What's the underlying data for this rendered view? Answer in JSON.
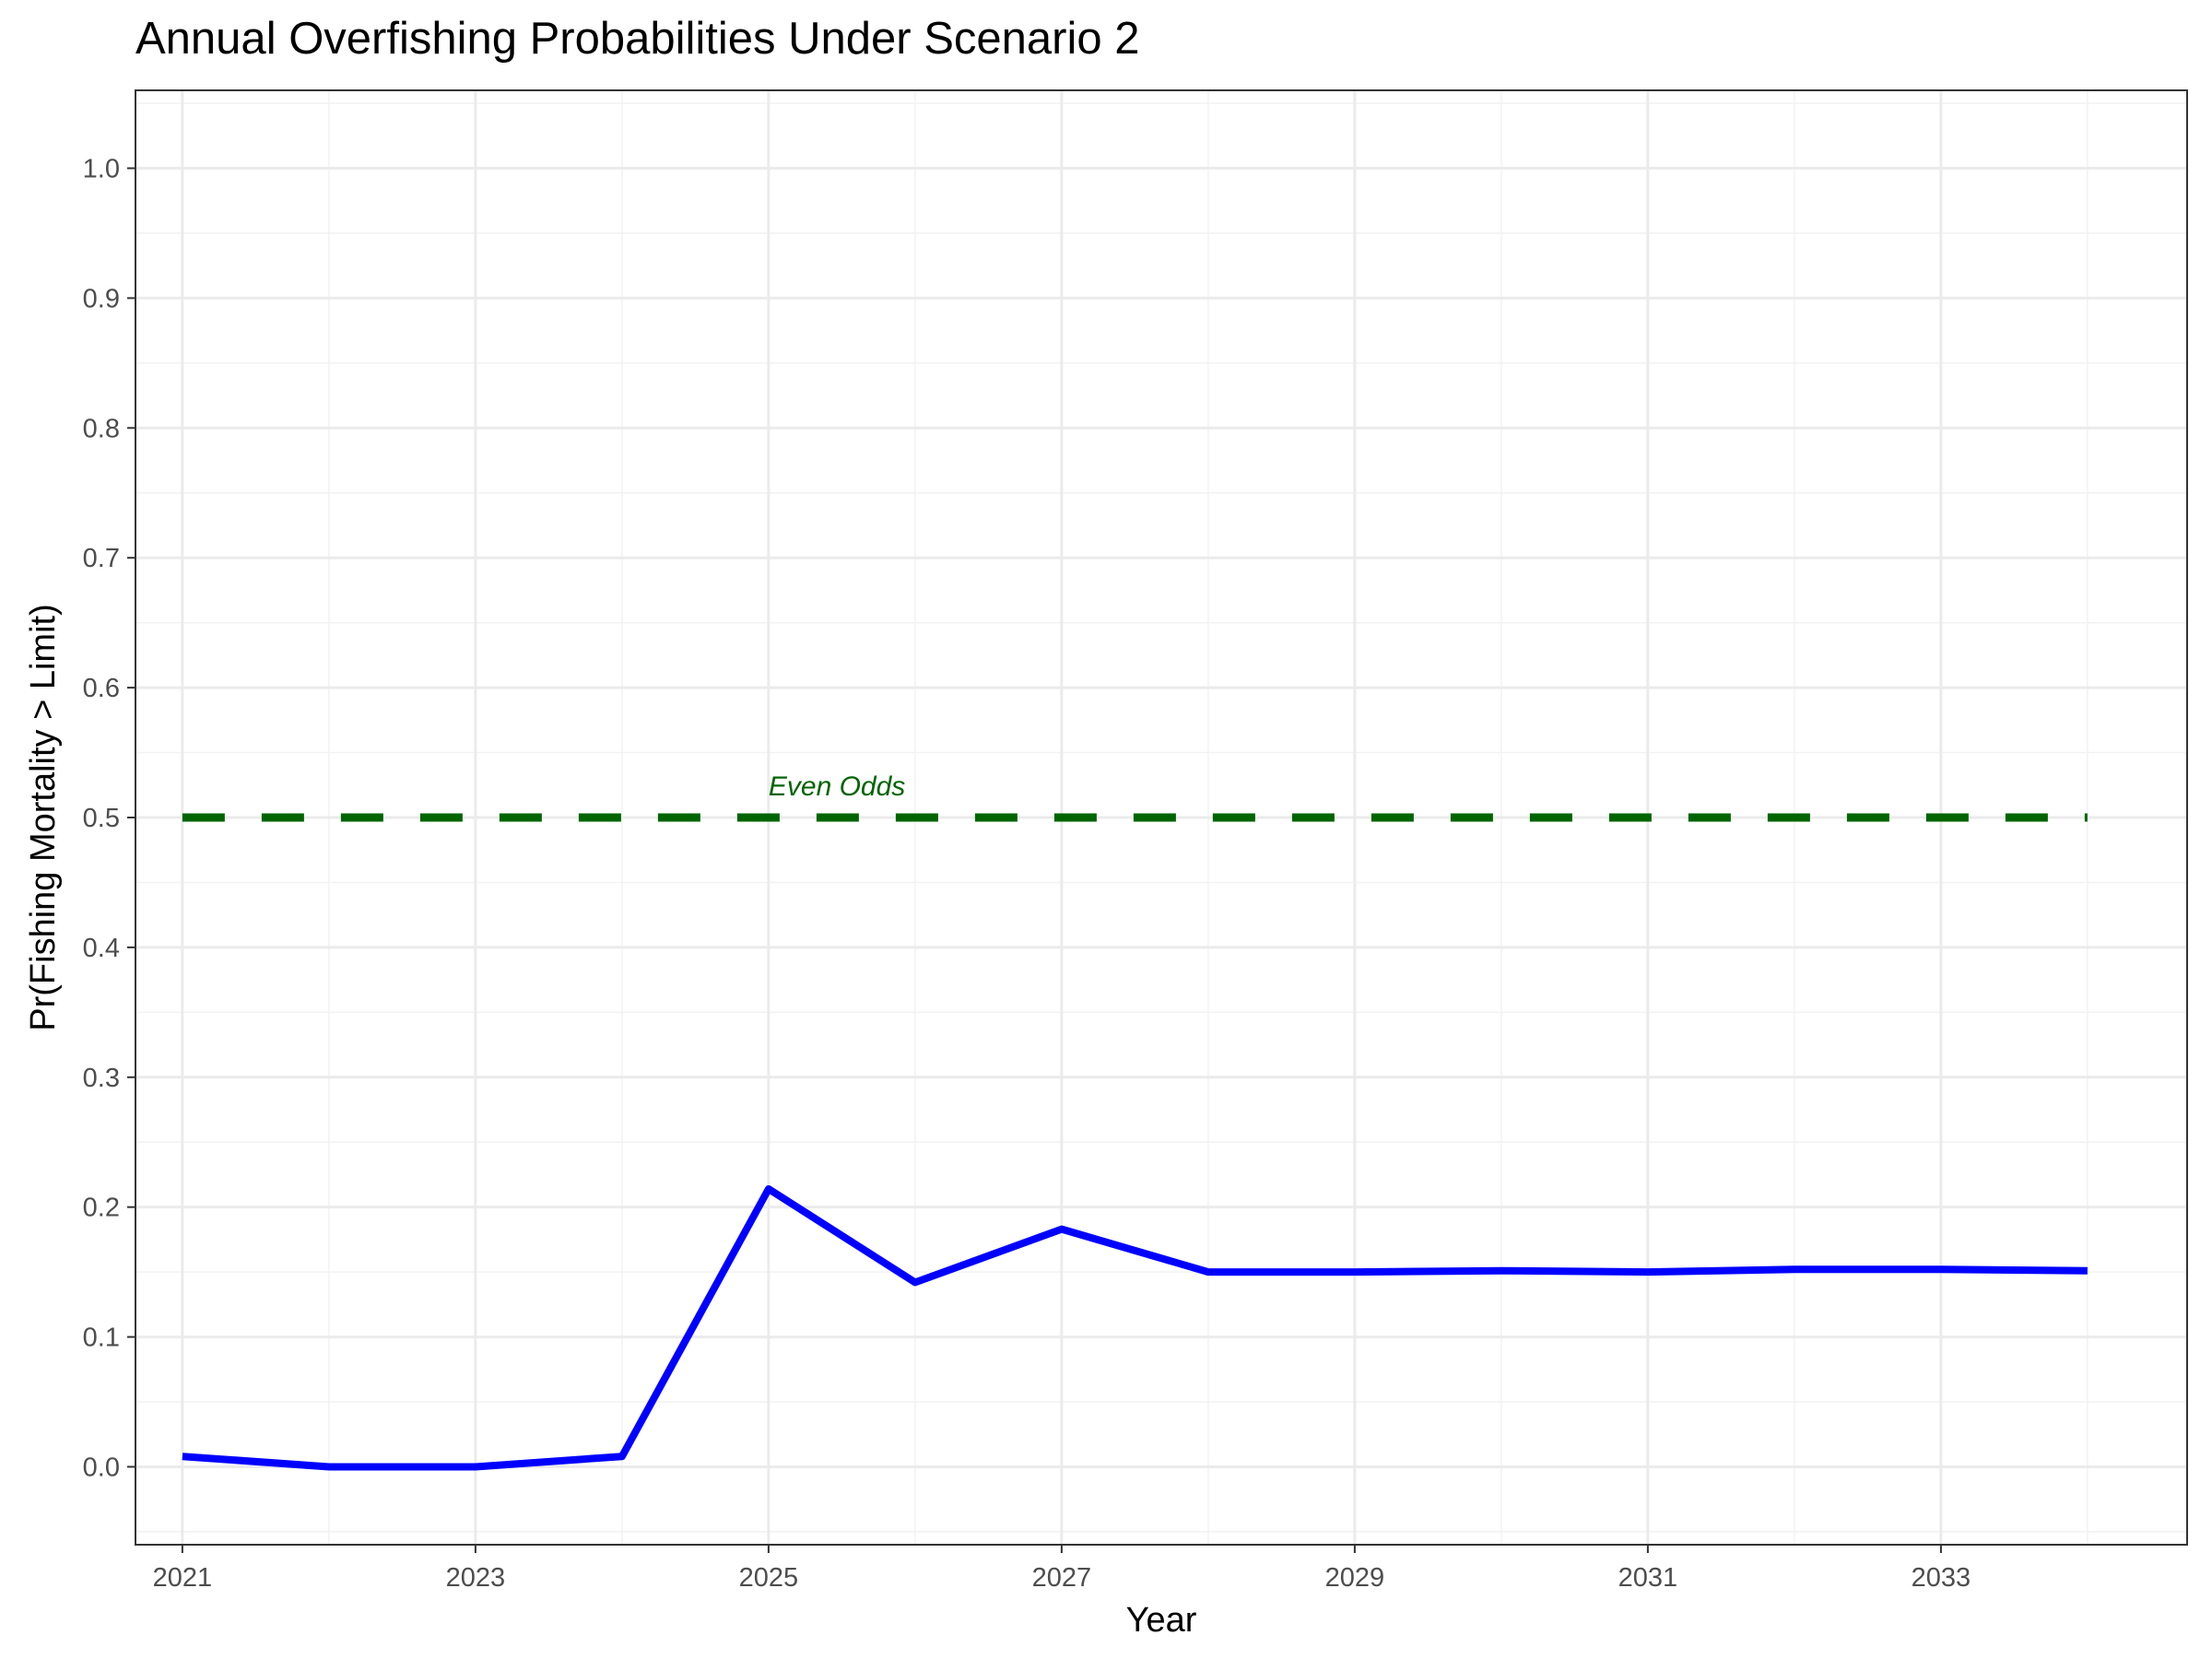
{
  "chart_data": {
    "type": "line",
    "title": "Annual Overfishing Probabilities Under Scenario 2",
    "xlabel": "Year",
    "ylabel": "Pr(Fishing Mortality > Limit)",
    "xlim": [
      2020.68,
      2034.68
    ],
    "ylim": [
      -0.06,
      1.06
    ],
    "x_ticks": [
      2021,
      2023,
      2025,
      2027,
      2029,
      2031,
      2033
    ],
    "y_ticks": [
      0.0,
      0.1,
      0.2,
      0.3,
      0.4,
      0.5,
      0.6,
      0.7,
      0.8,
      0.9,
      1.0
    ],
    "grid": true,
    "series": [
      {
        "color": "#0000ff",
        "x": [
          2021,
          2022,
          2023,
          2024,
          2025,
          2026,
          2027,
          2028,
          2029,
          2030,
          2031,
          2032,
          2033,
          2034
        ],
        "values": [
          0.008,
          0.0,
          0.0,
          0.008,
          0.214,
          0.142,
          0.183,
          0.15,
          0.15,
          0.151,
          0.15,
          0.152,
          0.152,
          0.151
        ]
      }
    ],
    "reference_line": {
      "y": 0.5,
      "x_range": [
        2021,
        2034
      ],
      "color": "#006400",
      "style": "dashed",
      "label": "Even Odds",
      "label_x": 2025
    }
  }
}
